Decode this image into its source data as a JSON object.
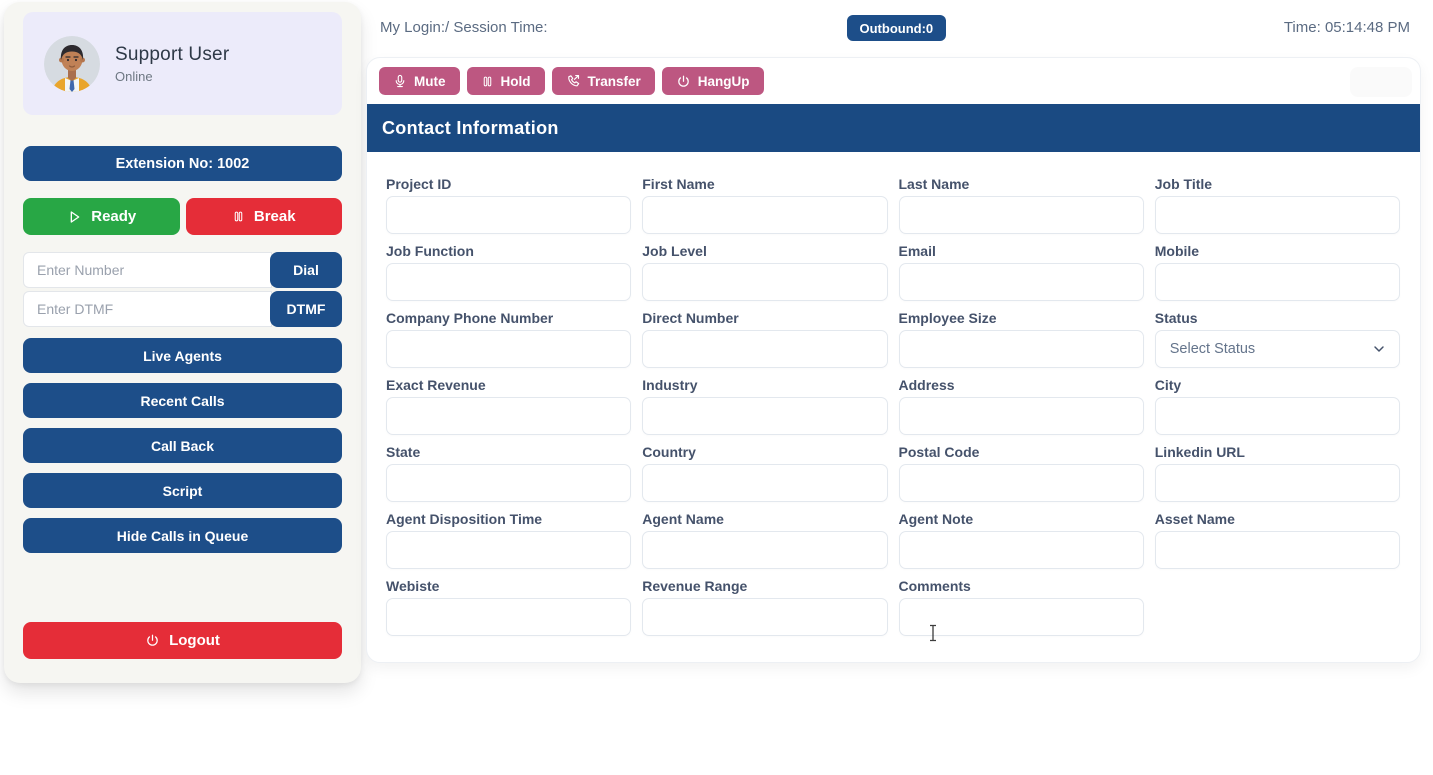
{
  "topbar": {
    "session_label": "My Login:/ Session Time:",
    "outbound_badge": "Outbound:0",
    "time_label": "Time: 05:14:48 PM"
  },
  "sidebar": {
    "user": {
      "name": "Support User",
      "presence": "Online",
      "avatar_icon": "male-agent-avatar"
    },
    "extension_label": "Extension No: 1002",
    "ready_button": {
      "label": "Ready",
      "icon": "play-icon"
    },
    "break_button": {
      "label": "Break",
      "icon": "pause-icon"
    },
    "dial": {
      "placeholder": "Enter Number",
      "button_label": "Dial"
    },
    "dtmf": {
      "placeholder": "Enter DTMF",
      "button_label": "DTMF"
    },
    "menu": [
      "Live Agents",
      "Recent Calls",
      "Call Back",
      "Script",
      "Hide Calls in Queue"
    ],
    "logout_button": {
      "label": "Logout",
      "icon": "power-icon"
    }
  },
  "call_controls": [
    {
      "label": "Mute",
      "icon": "microphone-icon"
    },
    {
      "label": "Hold",
      "icon": "pause-icon"
    },
    {
      "label": "Transfer",
      "icon": "phone-transfer-icon"
    },
    {
      "label": "HangUp",
      "icon": "power-icon"
    }
  ],
  "contact_panel": {
    "title": "Contact Information",
    "fields": [
      {
        "label": "Project ID",
        "type": "text",
        "value": ""
      },
      {
        "label": "First Name",
        "type": "text",
        "value": ""
      },
      {
        "label": "Last Name",
        "type": "text",
        "value": ""
      },
      {
        "label": "Job Title",
        "type": "text",
        "value": ""
      },
      {
        "label": "Job Function",
        "type": "text",
        "value": ""
      },
      {
        "label": "Job Level",
        "type": "text",
        "value": ""
      },
      {
        "label": "Email",
        "type": "text",
        "value": ""
      },
      {
        "label": "Mobile",
        "type": "text",
        "value": ""
      },
      {
        "label": "Company Phone Number",
        "type": "text",
        "value": ""
      },
      {
        "label": "Direct Number",
        "type": "text",
        "value": ""
      },
      {
        "label": "Employee Size",
        "type": "text",
        "value": ""
      },
      {
        "label": "Status",
        "type": "select",
        "value": "Select Status",
        "icon": "chevron-down-icon"
      },
      {
        "label": "Exact Revenue",
        "type": "text",
        "value": ""
      },
      {
        "label": "Industry",
        "type": "text",
        "value": ""
      },
      {
        "label": "Address",
        "type": "text",
        "value": ""
      },
      {
        "label": "City",
        "type": "text",
        "value": ""
      },
      {
        "label": "State",
        "type": "text",
        "value": ""
      },
      {
        "label": "Country",
        "type": "text",
        "value": ""
      },
      {
        "label": "Postal Code",
        "type": "text",
        "value": ""
      },
      {
        "label": "Linkedin URL",
        "type": "text",
        "value": ""
      },
      {
        "label": "Agent Disposition Time",
        "type": "text",
        "value": ""
      },
      {
        "label": "Agent Name",
        "type": "text",
        "value": ""
      },
      {
        "label": "Agent Note",
        "type": "text",
        "value": ""
      },
      {
        "label": "Asset Name",
        "type": "text",
        "value": ""
      },
      {
        "label": "Webiste",
        "type": "text",
        "value": ""
      },
      {
        "label": "Revenue Range",
        "type": "text",
        "value": ""
      },
      {
        "label": "Comments",
        "type": "text",
        "value": ""
      }
    ]
  },
  "colors": {
    "navy": "#1d4e89",
    "panel_header_navy": "#1a4a82",
    "green": "#28a745",
    "red": "#e52d38",
    "mauve": "#bd5781",
    "profile_lavender": "#ecebfa",
    "sidebar_bg": "#f6f6f2",
    "label_slate": "#45526b",
    "muted_text": "#5b6b82"
  }
}
